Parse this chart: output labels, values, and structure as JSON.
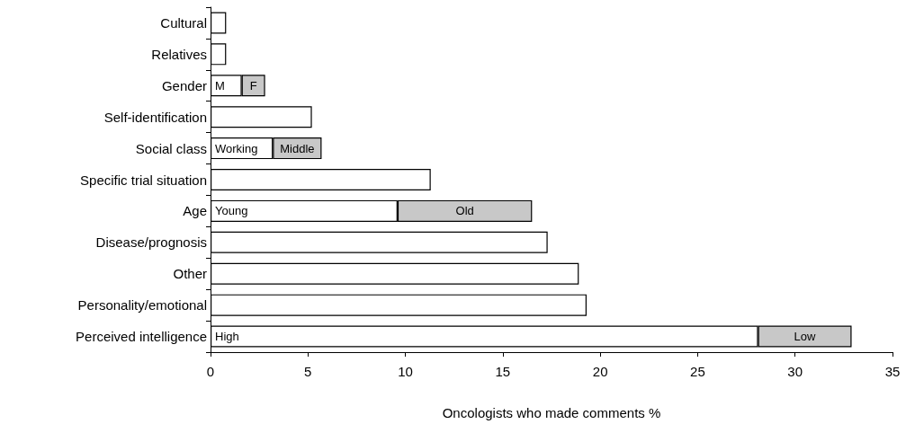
{
  "chart_data": {
    "type": "bar",
    "orientation": "horizontal",
    "stacked": true,
    "xlabel": "Oncologists who made comments %",
    "categories": [
      "Cultural",
      "Relatives",
      "Gender",
      "Self-identification",
      "Social class",
      "Specific trial situation",
      "Age",
      "Disease/prognosis",
      "Other",
      "Personality/emotional",
      "Perceived intelligence"
    ],
    "series": [
      {
        "color": "#ffffff",
        "values": [
          0.8,
          0.8,
          1.6,
          5.2,
          3.2,
          11.3,
          9.6,
          17.3,
          18.9,
          19.3,
          28.1
        ],
        "value_labels": [
          null,
          null,
          "M",
          null,
          "Working",
          null,
          "Young",
          null,
          null,
          null,
          "High"
        ]
      },
      {
        "color": "#c8c8c8",
        "values": [
          null,
          null,
          1.2,
          null,
          2.5,
          null,
          6.9,
          null,
          null,
          null,
          4.8
        ],
        "value_labels": [
          null,
          null,
          "F",
          null,
          "Middle",
          null,
          "Old",
          null,
          null,
          null,
          "Low"
        ]
      }
    ],
    "xlim": [
      0,
      35
    ],
    "xticks": [
      0,
      5,
      10,
      15,
      20,
      25,
      30,
      35
    ],
    "grid": false
  }
}
